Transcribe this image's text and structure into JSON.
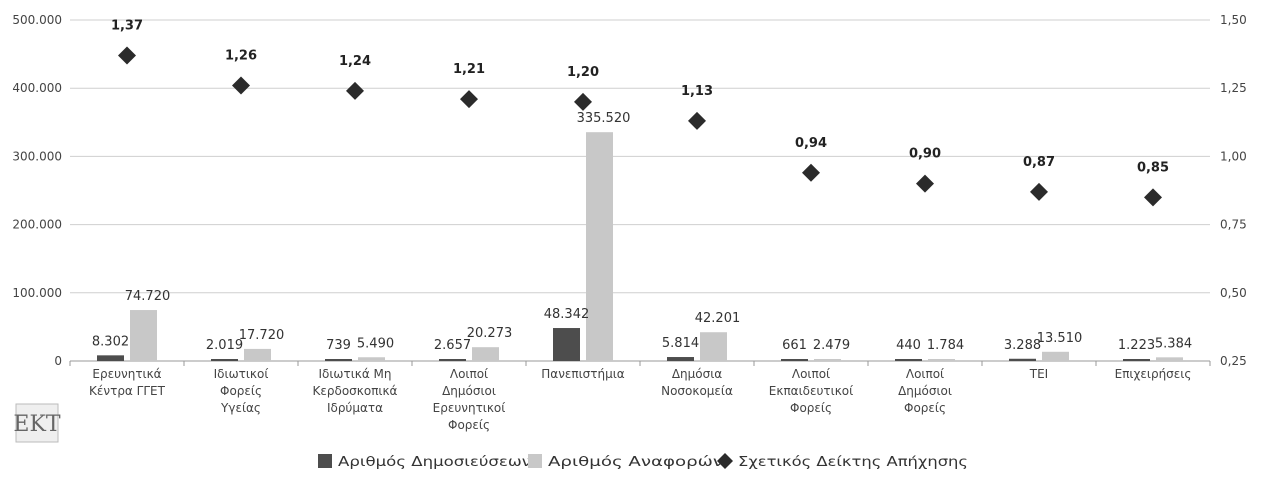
{
  "chart_data": {
    "type": "bar",
    "categories": [
      [
        "Ερευνητικά",
        "Κέντρα ΓΓΕΤ"
      ],
      [
        "Ιδιωτικοί",
        "Φορείς",
        "Υγείας"
      ],
      [
        "Ιδιωτικά Μη",
        "Κερδοσκοπικά",
        "Ιδρύματα"
      ],
      [
        "Λοιποί",
        "Δημόσιοι",
        "Ερευνητικοί",
        "Φορείς"
      ],
      [
        "Πανεπιστήμια"
      ],
      [
        "Δημόσια",
        "Νοσοκομεία"
      ],
      [
        "Λοιποί",
        "Εκπαιδευτικοί",
        "Φορείς"
      ],
      [
        "Λοιποί",
        "Δημόσιοι",
        "Φορείς"
      ],
      [
        "ΤΕΙ"
      ],
      [
        "Επιχειρήσεις"
      ]
    ],
    "series": [
      {
        "name": "Αριθμός Δημοσιεύσεων",
        "axis": "left",
        "kind": "bar",
        "color": "#4d4d4d",
        "values": [
          8302,
          2019,
          739,
          2657,
          48342,
          5814,
          661,
          440,
          3288,
          1223
        ],
        "labels": [
          "8.302",
          "2.019",
          "739",
          "2.657",
          "48.342",
          "5.814",
          "661",
          "440",
          "3.288",
          "1.223"
        ]
      },
      {
        "name": "Αριθμός Αναφορών",
        "axis": "left",
        "kind": "bar",
        "color": "#c8c8c8",
        "values": [
          74720,
          17720,
          5490,
          20273,
          335520,
          42201,
          2479,
          1784,
          13510,
          5384
        ],
        "labels": [
          "74.720",
          "17.720",
          "5.490",
          "20.273",
          "335.520",
          "42.201",
          "2.479",
          "1.784",
          "13.510",
          "5.384"
        ]
      },
      {
        "name": "Σχετικός Δείκτης Απήχησης",
        "axis": "right",
        "kind": "marker",
        "color": "#2b2b2b",
        "values": [
          1.37,
          1.26,
          1.24,
          1.21,
          1.2,
          1.13,
          0.94,
          0.9,
          0.87,
          0.85
        ],
        "labels": [
          "1,37",
          "1,26",
          "1,24",
          "1,21",
          "1,20",
          "1,13",
          "0,94",
          "0,90",
          "0,87",
          "0,85"
        ]
      }
    ],
    "left_axis": {
      "ylim": [
        0,
        500000
      ],
      "ticks": [
        0,
        100000,
        200000,
        300000,
        400000,
        500000
      ],
      "tick_labels": [
        "0",
        "100.000",
        "200.000",
        "300.000",
        "400.000",
        "500.000"
      ]
    },
    "right_axis": {
      "ylim": [
        0.25,
        1.5
      ],
      "ticks": [
        0.25,
        0.5,
        0.75,
        1.0,
        1.25,
        1.5
      ],
      "tick_labels": [
        "0,25",
        "0,50",
        "0,75",
        "1,00",
        "1,25",
        "1,50"
      ]
    },
    "grid": true,
    "legend": "bottom-center"
  },
  "logo": {
    "text": "ΕΚΤ"
  }
}
